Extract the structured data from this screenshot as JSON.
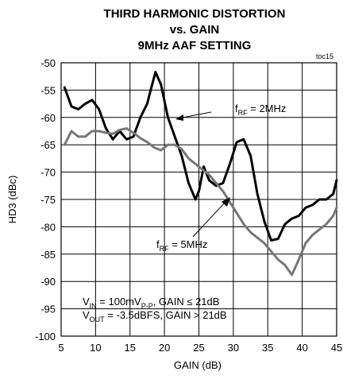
{
  "chart_data": {
    "type": "line",
    "title": [
      "THIRD HARMONIC DISTORTION",
      "vs. GAIN",
      "9MHz AAF SETTING"
    ],
    "code": "toc15",
    "xlabel": "GAIN (dB)",
    "ylabel": "HD3 (dBc)",
    "xlim": [
      5,
      45
    ],
    "ylim": [
      -100,
      -50
    ],
    "xticks": [
      "5",
      "10",
      "15",
      "20",
      "25",
      "30",
      "35",
      "40",
      "45"
    ],
    "yticks": [
      "-50",
      "-55",
      "-60",
      "-65",
      "-70",
      "-75",
      "-80",
      "-85",
      "-90",
      "-95",
      "-100"
    ],
    "grid": true,
    "series": [
      {
        "name": "fRF = 2MHz",
        "color": "#000000",
        "x": [
          5.5,
          6.5,
          7.5,
          8.5,
          9.5,
          10.5,
          11.5,
          12.5,
          13.5,
          14.5,
          15.5,
          16.5,
          17.5,
          18.0,
          18.7,
          19.5,
          20.5,
          21.5,
          22.5,
          23.5,
          24.5,
          25.0,
          25.7,
          26.5,
          27.5,
          28.5,
          29.5,
          30.5,
          31.5,
          32.5,
          33.5,
          34.5,
          35.5,
          36.5,
          37.5,
          38.5,
          39.5,
          40.5,
          41.5,
          42.5,
          43.5,
          44.5,
          45.0
        ],
        "y": [
          -54.5,
          -58,
          -58.5,
          -57.5,
          -56.8,
          -58.5,
          -62,
          -64,
          -62.5,
          -64,
          -63.5,
          -60,
          -57.5,
          -55,
          -51.7,
          -54,
          -60,
          -63.5,
          -67,
          -72,
          -75,
          -73.5,
          -69,
          -71.5,
          -72.5,
          -72,
          -68.5,
          -64.5,
          -64,
          -67,
          -74,
          -79,
          -82.5,
          -82.2,
          -79.5,
          -78.5,
          -78,
          -76.5,
          -76,
          -75,
          -75,
          -74,
          -71.5
        ]
      },
      {
        "name": "fRF = 5MHz",
        "color": "#777777",
        "x": [
          5.5,
          6.5,
          7.5,
          8.5,
          9.5,
          10.5,
          11.5,
          12.5,
          13.5,
          14.5,
          15.5,
          16.5,
          17.5,
          18.5,
          19.5,
          20.5,
          21.5,
          22.5,
          23.5,
          24.5,
          25.5,
          26.5,
          27.5,
          28.5,
          29.5,
          30.5,
          31.5,
          32.5,
          33.5,
          34.5,
          35.5,
          36.5,
          37.5,
          38.5,
          39.5,
          40.5,
          41.5,
          42.5,
          43.5,
          44.5,
          45.0
        ],
        "y": [
          -65,
          -62.5,
          -63.5,
          -63.5,
          -62.5,
          -62.5,
          -62.8,
          -63,
          -62.3,
          -62,
          -62.8,
          -63.8,
          -64.5,
          -65.5,
          -66,
          -65,
          -65,
          -65.8,
          -67.5,
          -68.5,
          -69.5,
          -70.5,
          -72,
          -73.5,
          -75.5,
          -77.5,
          -79.5,
          -81,
          -82,
          -83,
          -84.5,
          -86,
          -87,
          -88.8,
          -86,
          -83,
          -81.5,
          -80.5,
          -79.5,
          -78,
          -76.5
        ]
      }
    ],
    "annotations": {
      "f2_main": "f",
      "f2_sub": "RF",
      "f2_rest": " = 2MHz",
      "f5_main": "f",
      "f5_sub": "RF",
      "f5_rest": " = 5MHz",
      "cond1_a": "V",
      "cond1_sub": "IN",
      "cond1_b": " = 100mV",
      "cond1_sub2": "P-P",
      "cond1_c": ", GAIN ≤ 21dB",
      "cond2_a": "V",
      "cond2_sub": "OUT",
      "cond2_b": " = -3.5dBFS, GAIN > 21dB"
    }
  }
}
